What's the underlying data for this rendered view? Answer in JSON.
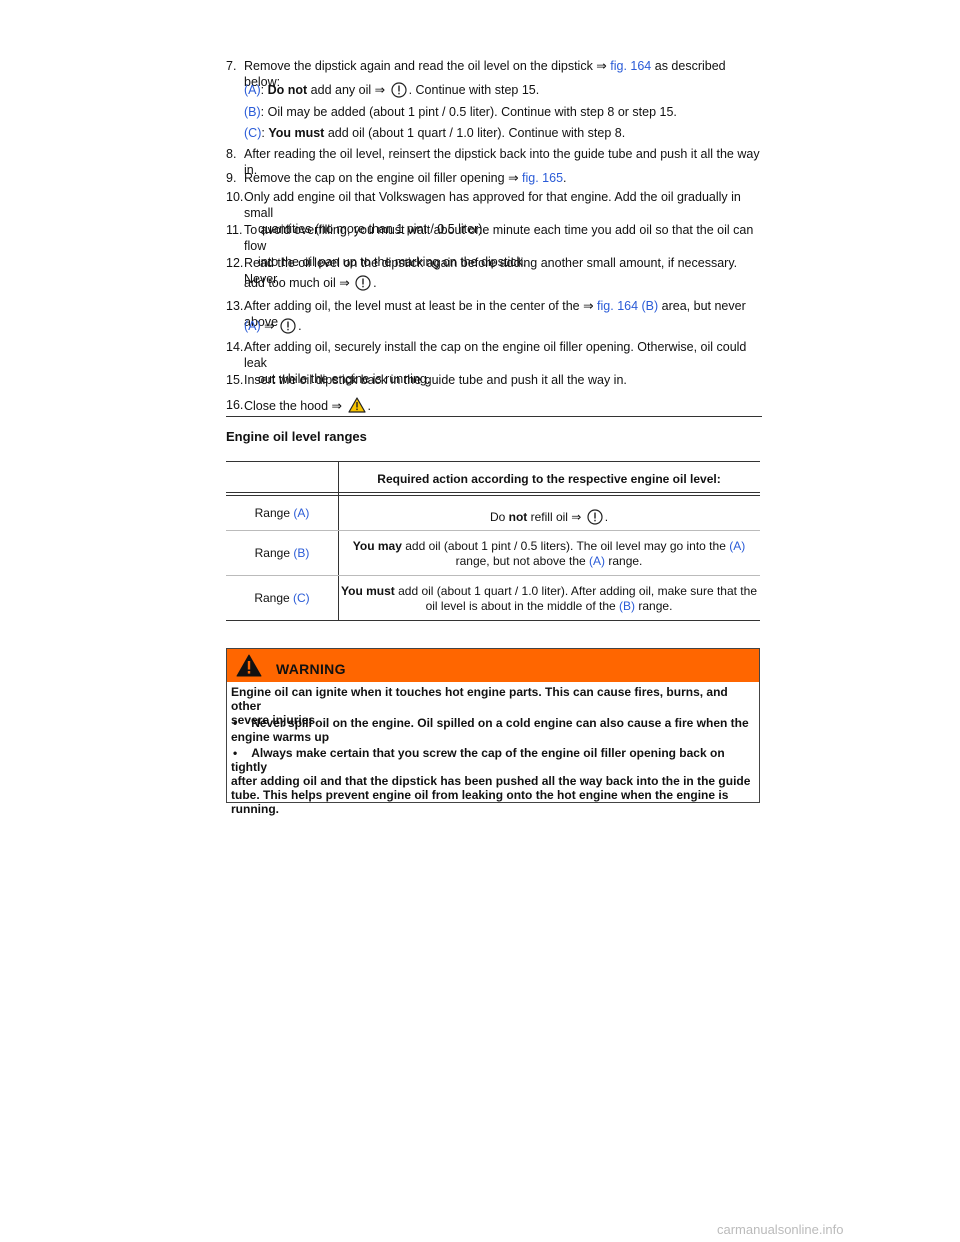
{
  "steps": {
    "s7": {
      "num": "7.",
      "pre": "Remove the dipstick again and read the oil level on the dipstick ⇒ ",
      "link": "fig. 164",
      "post": " as described below:"
    },
    "subA": {
      "label": "(A)",
      "bold": "Do not",
      "mid": " add any oil ⇒ ",
      "post": ". Continue with step 15."
    },
    "subB": {
      "label": "(B)",
      "text": ": Oil may be added (about 1 pint / 0.5 liter). Continue with step 8 or step 15."
    },
    "subC": {
      "label": "(C)",
      "bold": "You must",
      "post": " add oil (about 1 quart / 1.0 liter). Continue with step 8."
    },
    "s8": {
      "num": "8.",
      "text": "After reading the oil level, reinsert the dipstick back into the guide tube and push it all the way in."
    },
    "s9": {
      "num": "9.",
      "pre": "Remove the cap on the engine oil filler opening ⇒ ",
      "link": "fig. 165",
      "post": "."
    },
    "s10": {
      "num": "10.",
      "line1": "Only add engine oil that Volkswagen has approved for that engine. Add the oil gradually in small",
      "line2": "quantities (no more than 1 pint / 0.5 liter)."
    },
    "s11": {
      "num": "11.",
      "line1": "To avoid overfilling, you must wait about one minute each time you add oil so that the oil can flow",
      "line2": "into the oil pan up to the marking on the dipstick."
    },
    "s12": {
      "num": "12.",
      "line1": "Read the oil level on the dipstick again before adding another small amount, if necessary. Never",
      "line2": "add too much oil ⇒ ",
      "post": "."
    },
    "s13": {
      "num": "13.",
      "pre": "After adding oil, the level must at least be in the center of the ⇒ ",
      "link": "fig. 164 (B)",
      "post": " area, but never above",
      "link2": "(A)",
      "arrow": " ⇒ ",
      "end": "."
    },
    "s14": {
      "num": "14.",
      "line1": "After adding oil, securely install the cap on the engine oil filler opening. Otherwise, oil could leak",
      "line2": "out while the engine is running."
    },
    "s15": {
      "num": "15.",
      "text": "Insert the oil dipstick back in the guide tube and push it all the way in."
    },
    "s16": {
      "num": "16.",
      "pre": "Close the hood ⇒ ",
      "post": "."
    }
  },
  "section_heading": "Engine oil level ranges",
  "table": {
    "header": "Required action according to the respective engine oil level:",
    "rows": [
      {
        "range": "Range ",
        "label": "(A)",
        "a_pre": "Do ",
        "a_bold": "not",
        "a_mid": " refill oil ⇒ ",
        "a_post": "."
      },
      {
        "range": "Range ",
        "label": "(B)",
        "bold": "You may",
        "l1": " add oil (about 1 pint / 0.5 liters). The oil level may go into the ",
        "l1link": "(A)",
        "l2": "range, but not above the ",
        "l2link": "(A)",
        "l2post": " range."
      },
      {
        "range": "Range ",
        "label": "(C)",
        "bold": "You must",
        "l1": " add oil (about 1 quart / 1.0 liter). After adding oil, make sure that the",
        "l2": "oil level is about in the middle of the ",
        "l2link": "(B)",
        "l2post": " range."
      }
    ]
  },
  "warning": {
    "title": "WARNING",
    "intro1": "Engine oil can ignite when it touches hot engine parts. This can cause fires, burns, and other",
    "intro2": "severe injuries.",
    "b1_1": "Never spill oil on the engine. Oil spilled on a cold engine can also cause a fire when the",
    "b1_2": "engine warms up",
    "b2_1": "Always make certain that you screw the cap of the engine oil filler opening back on tightly",
    "b2_2": "after adding oil and that the dipstick has been pushed all the way back into the in the guide",
    "b2_3": "tube. This helps prevent engine oil from leaking onto the hot engine when the engine is",
    "b2_4": "running.",
    "bullet": "•"
  },
  "footer": "carmanualsonline.info",
  "colors": {
    "link": "#2a5bd7",
    "warning_bg": "#ff6600"
  },
  "icons": {
    "notice": "notice-circle-icon",
    "warning": "warning-triangle-icon"
  }
}
